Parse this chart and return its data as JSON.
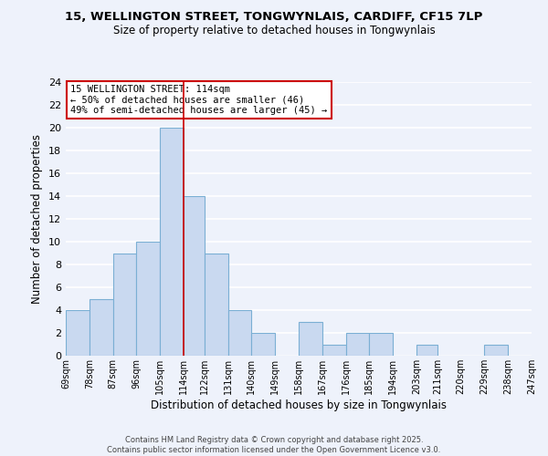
{
  "title_line1": "15, WELLINGTON STREET, TONGWYNLAIS, CARDIFF, CF15 7LP",
  "title_line2": "Size of property relative to detached houses in Tongwynlais",
  "xlabel": "Distribution of detached houses by size in Tongwynlais",
  "ylabel": "Number of detached properties",
  "bins": [
    69,
    78,
    87,
    96,
    105,
    114,
    122,
    131,
    140,
    149,
    158,
    167,
    176,
    185,
    194,
    203,
    211,
    220,
    229,
    238,
    247
  ],
  "counts": [
    4,
    5,
    9,
    10,
    20,
    14,
    9,
    4,
    2,
    0,
    3,
    1,
    2,
    2,
    0,
    1,
    0,
    0,
    1,
    0
  ],
  "bar_color": "#c9d9f0",
  "bar_edge_color": "#7bafd4",
  "vline_x": 114,
  "vline_color": "#cc0000",
  "annotation_title": "15 WELLINGTON STREET: 114sqm",
  "annotation_line1": "← 50% of detached houses are smaller (46)",
  "annotation_line2": "49% of semi-detached houses are larger (45) →",
  "annotation_box_color": "#ffffff",
  "annotation_box_edge": "#cc0000",
  "ylim": [
    0,
    24
  ],
  "yticks": [
    0,
    2,
    4,
    6,
    8,
    10,
    12,
    14,
    16,
    18,
    20,
    22,
    24
  ],
  "tick_labels": [
    "69sqm",
    "78sqm",
    "87sqm",
    "96sqm",
    "105sqm",
    "114sqm",
    "122sqm",
    "131sqm",
    "140sqm",
    "149sqm",
    "158sqm",
    "167sqm",
    "176sqm",
    "185sqm",
    "194sqm",
    "203sqm",
    "211sqm",
    "220sqm",
    "229sqm",
    "238sqm",
    "247sqm"
  ],
  "footer_line1": "Contains HM Land Registry data © Crown copyright and database right 2025.",
  "footer_line2": "Contains public sector information licensed under the Open Government Licence v3.0.",
  "background_color": "#eef2fb",
  "grid_color": "#ffffff"
}
